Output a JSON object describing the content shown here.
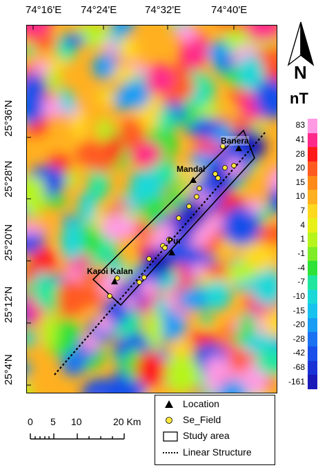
{
  "axes": {
    "lon_labels": [
      "74°16'E",
      "74°24'E",
      "74°32'E",
      "74°40'E"
    ],
    "lat_labels": [
      "25°36'N",
      "25°28'N",
      "25°20'N",
      "25°12'N",
      "25°4'N"
    ]
  },
  "places": {
    "banera": "Banera",
    "mandal": "Mandal",
    "pur": "Pur",
    "karoi_kalan": "Karoi Kalan"
  },
  "north": {
    "label": "N"
  },
  "colorbar": {
    "unit": "nT",
    "ticks": [
      "83",
      "41",
      "28",
      "20",
      "15",
      "10",
      "7",
      "4",
      "1",
      "-1",
      "-4",
      "-7",
      "-10",
      "-15",
      "-20",
      "-28",
      "-42",
      "-68",
      "-161"
    ],
    "colors": [
      "#ff9ae3",
      "#ff2a8a",
      "#ff1a1a",
      "#ff5a20",
      "#ff8a18",
      "#ffb020",
      "#ffd820",
      "#e8f018",
      "#b6f41e",
      "#7eec26",
      "#2fe238",
      "#21e6a0",
      "#1ad8d8",
      "#18c2ee",
      "#189cf4",
      "#1a72f2",
      "#184fea",
      "#1832d6",
      "#1a1ab8"
    ]
  },
  "scale": {
    "labels": [
      "0",
      "5",
      "10",
      "20 Km"
    ]
  },
  "legend": {
    "location": "Location",
    "se_field": "Se_Field",
    "study_area": "Study area",
    "linear_structure": "Linear Structure"
  }
}
